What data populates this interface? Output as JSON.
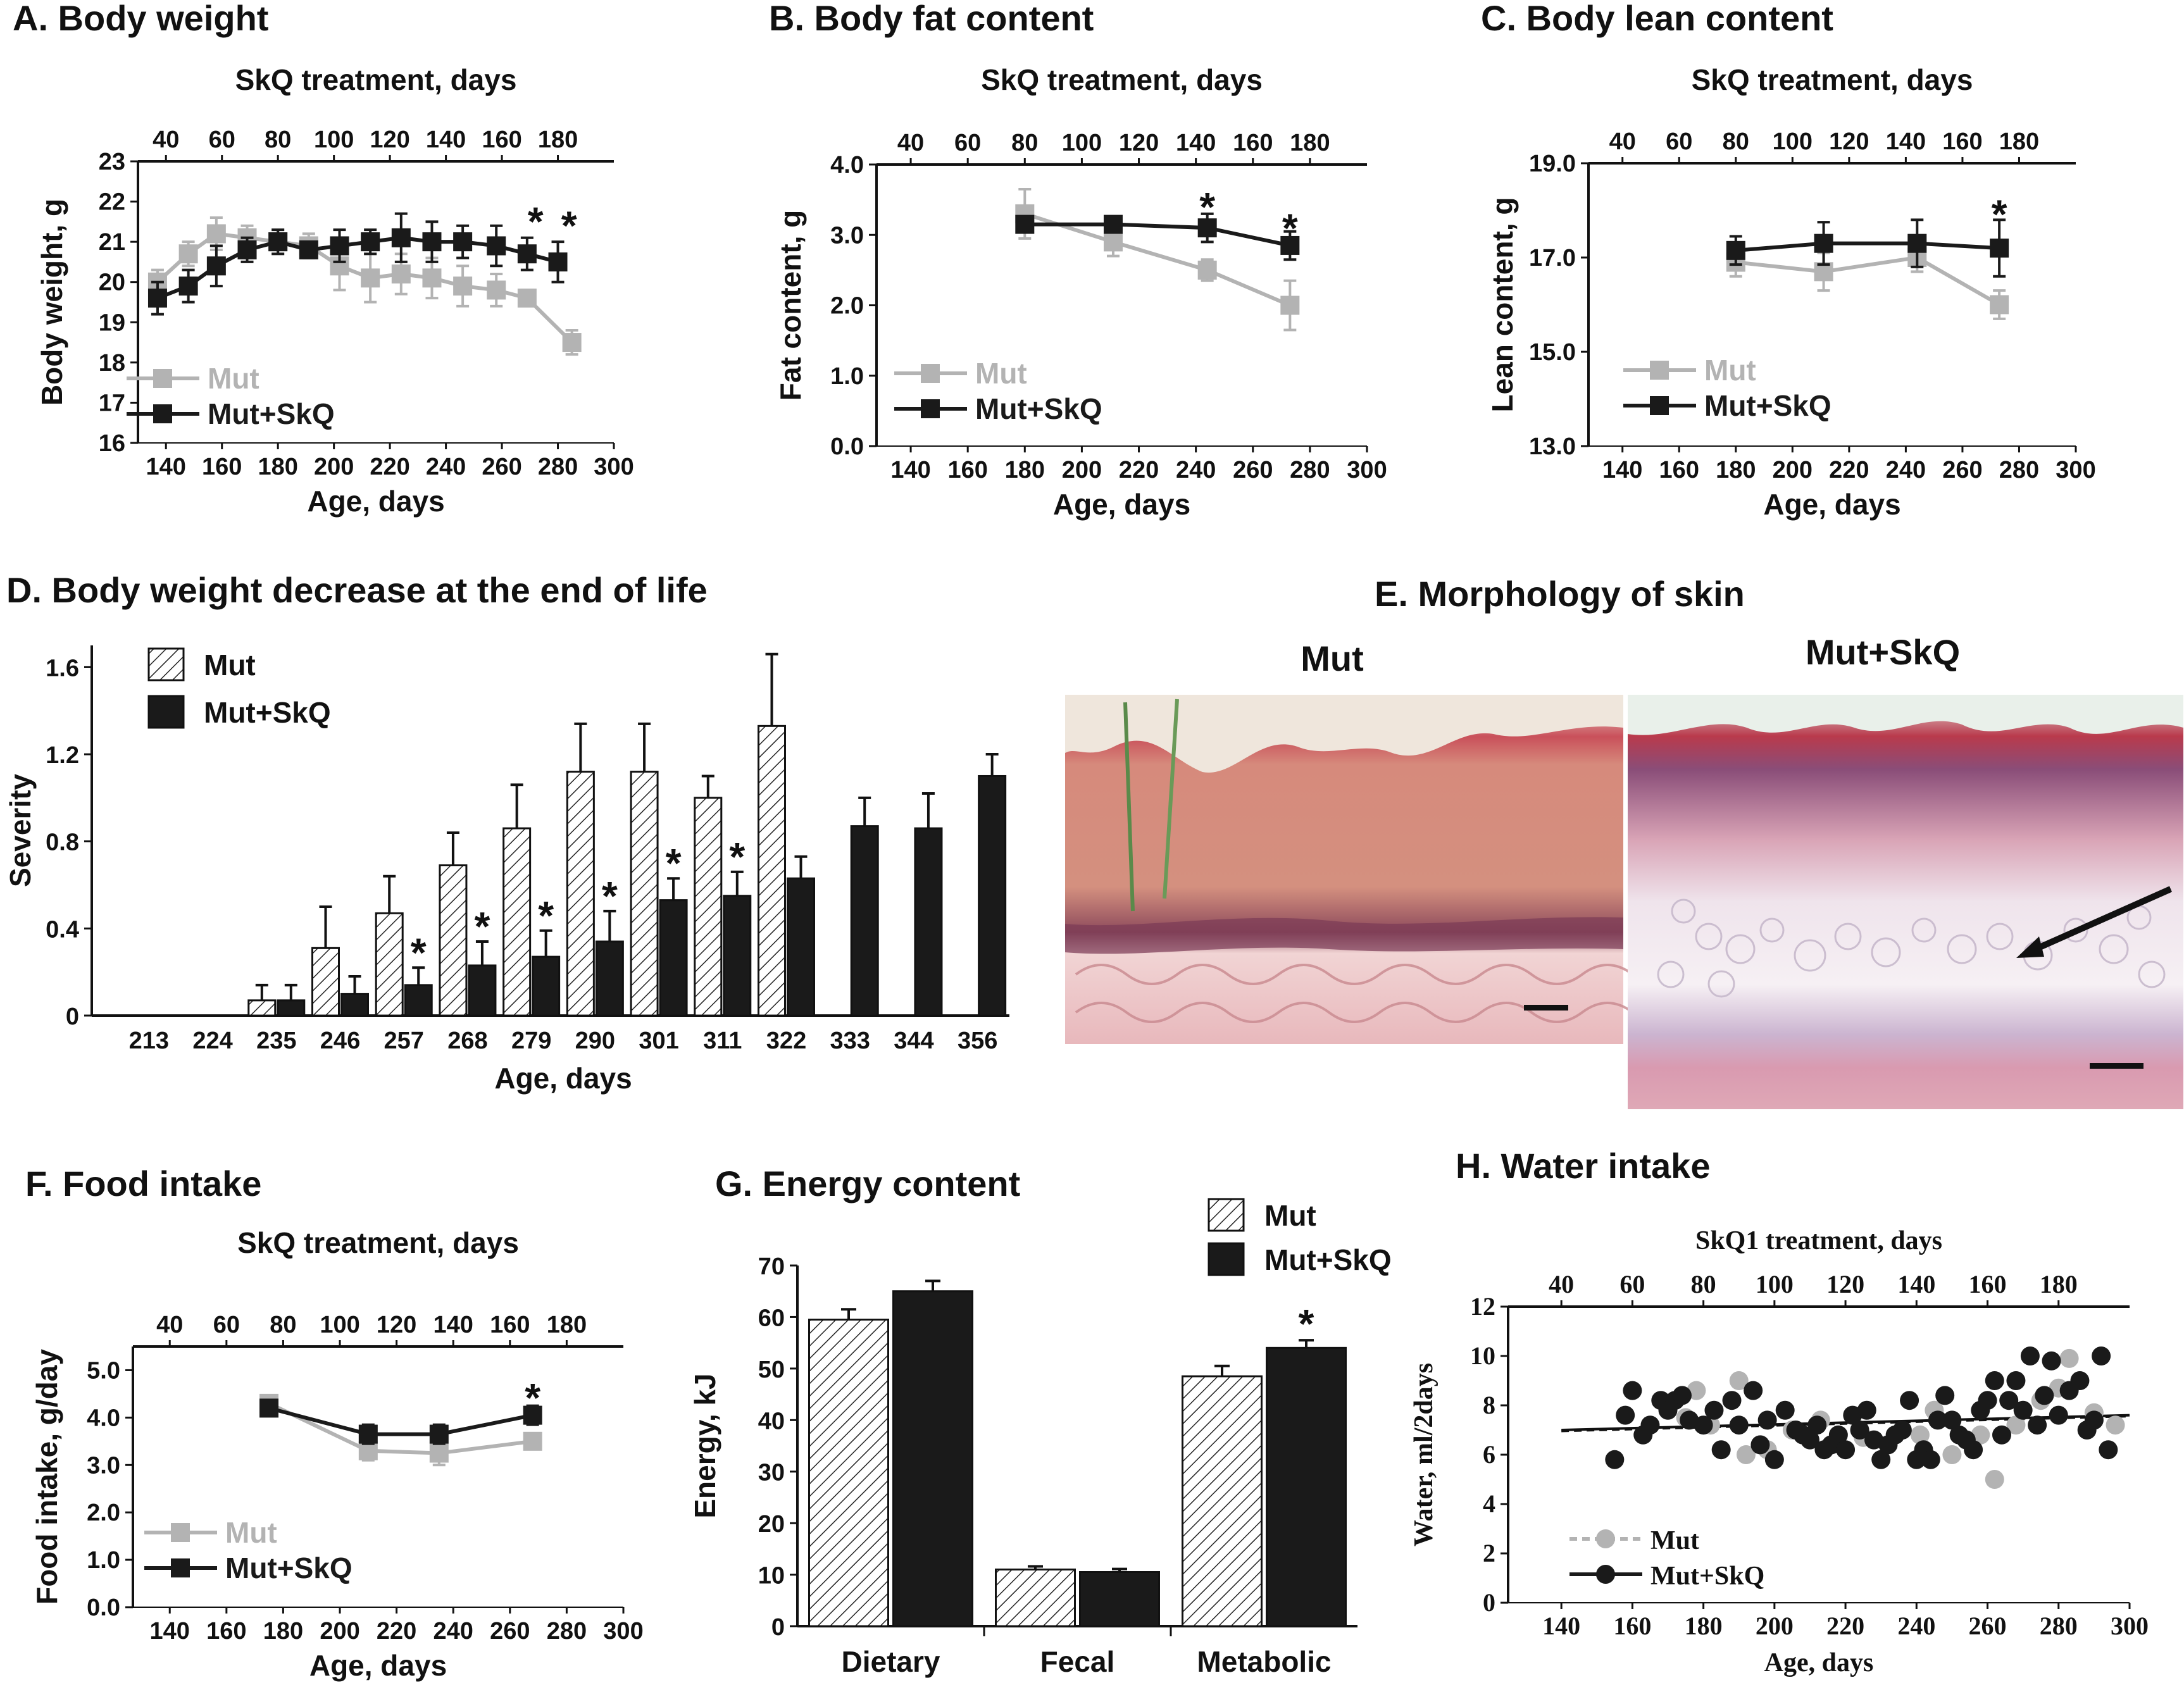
{
  "figure": {
    "panel_e_title": "E. Morphology of skin",
    "panel_e_mut_label": "Mut",
    "panel_e_skq_label": "Mut+SkQ"
  },
  "colors": {
    "mut": "#b3b3b3",
    "skq": "#1a1a1a"
  },
  "chart_data": [
    {
      "id": "A",
      "type": "line",
      "title": "A.  Body weight",
      "xlabel": "Age, days",
      "ylabel": "Body weight, g",
      "top_xlabel": "SkQ treatment, days",
      "xlim": [
        130,
        300
      ],
      "ylim": [
        16,
        23
      ],
      "xticks": [
        140,
        160,
        180,
        200,
        220,
        240,
        260,
        280,
        300
      ],
      "yticks": [
        16,
        17,
        18,
        19,
        20,
        21,
        22,
        23
      ],
      "top_xticks": [
        40,
        60,
        80,
        100,
        120,
        140,
        160,
        180
      ],
      "top_offset": 100,
      "legend": [
        "Mut",
        "Mut+SkQ"
      ],
      "series": [
        {
          "name": "Mut",
          "x": [
            137,
            148,
            158,
            169,
            180,
            191,
            202,
            213,
            224,
            235,
            246,
            258,
            269,
            285
          ],
          "y": [
            20.0,
            20.7,
            21.2,
            21.1,
            21.0,
            20.9,
            20.4,
            20.1,
            20.2,
            20.1,
            19.9,
            19.8,
            19.6,
            18.5
          ],
          "err": [
            0.3,
            0.3,
            0.4,
            0.3,
            0.3,
            0.3,
            0.6,
            0.6,
            0.5,
            0.5,
            0.5,
            0.4,
            0.2,
            0.3
          ]
        },
        {
          "name": "Mut+SkQ",
          "x": [
            137,
            148,
            158,
            169,
            180,
            191,
            202,
            213,
            224,
            235,
            246,
            258,
            269,
            280
          ],
          "y": [
            19.6,
            19.9,
            20.4,
            20.8,
            21.0,
            20.8,
            20.9,
            21.0,
            21.1,
            21.0,
            21.0,
            20.9,
            20.7,
            20.5
          ],
          "err": [
            0.4,
            0.4,
            0.5,
            0.3,
            0.3,
            0.2,
            0.4,
            0.3,
            0.6,
            0.5,
            0.4,
            0.5,
            0.4,
            0.5
          ]
        }
      ],
      "stars": [
        {
          "x": 272,
          "y": 21.6
        },
        {
          "x": 284,
          "y": 21.5
        }
      ]
    },
    {
      "id": "B",
      "type": "line",
      "title": "B.  Body fat content",
      "xlabel": "Age, days",
      "ylabel": "Fat content, g",
      "top_xlabel": "SkQ treatment, days",
      "xlim": [
        128,
        300
      ],
      "ylim": [
        0,
        4
      ],
      "xticks": [
        140,
        160,
        180,
        200,
        220,
        240,
        260,
        280,
        300
      ],
      "yticks": [
        0.0,
        1.0,
        2.0,
        3.0,
        4.0
      ],
      "ytick_labels": [
        "0.0",
        "1.0",
        "2.0",
        "3.0",
        "4.0"
      ],
      "top_xticks": [
        40,
        60,
        80,
        100,
        120,
        140,
        160,
        180
      ],
      "top_offset": 100,
      "legend": [
        "Mut",
        "Mut+SkQ"
      ],
      "series": [
        {
          "name": "Mut",
          "x": [
            180,
            211,
            244,
            273
          ],
          "y": [
            3.3,
            2.9,
            2.5,
            2.0
          ],
          "err": [
            0.35,
            0.2,
            0.15,
            0.35
          ]
        },
        {
          "name": "Mut+SkQ",
          "x": [
            180,
            211,
            244,
            273
          ],
          "y": [
            3.15,
            3.15,
            3.1,
            2.85
          ],
          "err": [
            0.1,
            0.1,
            0.2,
            0.2
          ]
        }
      ],
      "stars": [
        {
          "x": 244,
          "y": 3.45
        },
        {
          "x": 273,
          "y": 3.15
        }
      ]
    },
    {
      "id": "C",
      "type": "line",
      "title": "C.  Body lean content",
      "xlabel": "Age, days",
      "ylabel": "Lean content, g",
      "top_xlabel": "SkQ treatment, days",
      "xlim": [
        128,
        300
      ],
      "ylim": [
        13,
        19
      ],
      "xticks": [
        140,
        160,
        180,
        200,
        220,
        240,
        260,
        280,
        300
      ],
      "yticks": [
        13,
        15,
        17,
        19
      ],
      "ytick_labels": [
        "13.0",
        "15.0",
        "17.0",
        "19.0"
      ],
      "top_xticks": [
        40,
        60,
        80,
        100,
        120,
        140,
        160,
        180
      ],
      "top_offset": 100,
      "legend": [
        "Mut",
        "Mut+SkQ"
      ],
      "series": [
        {
          "name": "Mut",
          "x": [
            180,
            211,
            244,
            273
          ],
          "y": [
            16.9,
            16.7,
            17.0,
            16.0
          ],
          "err": [
            0.3,
            0.4,
            0.3,
            0.3
          ]
        },
        {
          "name": "Mut+SkQ",
          "x": [
            180,
            211,
            244,
            273
          ],
          "y": [
            17.15,
            17.3,
            17.3,
            17.2
          ],
          "err": [
            0.3,
            0.45,
            0.5,
            0.6
          ]
        }
      ],
      "stars": [
        {
          "x": 273,
          "y": 18.0
        }
      ]
    },
    {
      "id": "D",
      "type": "bar",
      "title": "D.  Body weight decrease at the end of life",
      "xlabel": "Age, days",
      "ylabel": "Severity",
      "categories": [
        "213",
        "224",
        "235",
        "246",
        "257",
        "268",
        "279",
        "290",
        "301",
        "311",
        "322",
        "333",
        "344",
        "356"
      ],
      "ylim": [
        0,
        1.7
      ],
      "yticks": [
        0,
        0.4,
        0.8,
        1.2,
        1.6
      ],
      "ytick_labels": [
        "0",
        "0.4",
        "0.8",
        "1.2",
        "1.6"
      ],
      "legend": [
        "Mut",
        "Mut+SkQ"
      ],
      "series": [
        {
          "name": "Mut",
          "values": [
            0,
            0,
            0.07,
            0.31,
            0.47,
            0.69,
            0.86,
            1.12,
            1.12,
            1.0,
            1.33,
            0,
            0,
            0
          ],
          "err": [
            0,
            0,
            0.07,
            0.19,
            0.17,
            0.15,
            0.2,
            0.22,
            0.22,
            0.1,
            0.33,
            0,
            0,
            0
          ]
        },
        {
          "name": "Mut+SkQ",
          "values": [
            0,
            0,
            0.07,
            0.1,
            0.14,
            0.23,
            0.27,
            0.34,
            0.53,
            0.55,
            0.63,
            0.87,
            0.86,
            1.1
          ],
          "err": [
            0,
            0,
            0.07,
            0.08,
            0.08,
            0.11,
            0.12,
            0.14,
            0.1,
            0.11,
            0.1,
            0.13,
            0.16,
            0.1
          ]
        }
      ],
      "stars": [
        "257",
        "268",
        "279",
        "290",
        "301",
        "311"
      ]
    },
    {
      "id": "F",
      "type": "line",
      "title": "F.  Food intake",
      "xlabel": "Age, days",
      "ylabel": "Food intake, g/day",
      "top_xlabel": "SkQ treatment, days",
      "xlim": [
        127,
        300
      ],
      "ylim": [
        0,
        5.5
      ],
      "xticks": [
        140,
        160,
        180,
        200,
        220,
        240,
        260,
        280,
        300
      ],
      "yticks": [
        0,
        1,
        2,
        3,
        4,
        5
      ],
      "ytick_labels": [
        "0.0",
        "1.0",
        "2.0",
        "3.0",
        "4.0",
        "5.0"
      ],
      "top_xticks": [
        40,
        60,
        80,
        100,
        120,
        140,
        160,
        180
      ],
      "top_offset": 100,
      "legend": [
        "Mut",
        "Mut+SkQ"
      ],
      "series": [
        {
          "name": "Mut",
          "x": [
            175,
            210,
            235,
            268
          ],
          "y": [
            4.3,
            3.3,
            3.25,
            3.5
          ],
          "err": [
            0.1,
            0.2,
            0.25,
            0.15
          ]
        },
        {
          "name": "Mut+SkQ",
          "x": [
            175,
            210,
            235,
            268
          ],
          "y": [
            4.2,
            3.65,
            3.65,
            4.05
          ],
          "err": [
            0.1,
            0.2,
            0.2,
            0.2
          ]
        }
      ],
      "stars": [
        {
          "x": 268,
          "y": 4.5
        }
      ]
    },
    {
      "id": "G",
      "type": "bar",
      "title": "G.  Energy content",
      "xlabel": "",
      "ylabel": "Energy, kJ",
      "categories": [
        "Dietary",
        "Fecal",
        "Metabolic"
      ],
      "ylim": [
        0,
        70
      ],
      "yticks": [
        0,
        10,
        20,
        30,
        40,
        50,
        60,
        70
      ],
      "legend": [
        "Mut",
        "Mut+SkQ"
      ],
      "series": [
        {
          "name": "Mut",
          "values": [
            59.5,
            11,
            48.5
          ],
          "err": [
            2,
            0.6,
            2
          ]
        },
        {
          "name": "Mut+SkQ",
          "values": [
            65,
            10.5,
            54
          ],
          "err": [
            2,
            0.6,
            1.5
          ]
        }
      ],
      "stars": [
        "Metabolic"
      ]
    },
    {
      "id": "H",
      "type": "scatter",
      "title": "H.  Water intake",
      "xlabel": "Age, days",
      "ylabel": "Water, ml/2days",
      "top_xlabel": "SkQ1 treatment, days",
      "xlim": [
        125,
        300
      ],
      "ylim": [
        0,
        12
      ],
      "xticks": [
        140,
        160,
        180,
        200,
        220,
        240,
        260,
        280,
        300
      ],
      "yticks": [
        0,
        2,
        4,
        6,
        8,
        10,
        12
      ],
      "top_xticks": [
        40,
        60,
        80,
        100,
        120,
        140,
        160,
        180
      ],
      "top_offset": 100,
      "legend": [
        "Mut",
        "Mut+SkQ"
      ],
      "trend": {
        "x": [
          140,
          300
        ],
        "y": [
          7.0,
          7.6
        ]
      },
      "series": [
        {
          "name": "Mut",
          "x": [
            175,
            178,
            182,
            190,
            192,
            198,
            205,
            213,
            225,
            232,
            241,
            245,
            250,
            258,
            262,
            268,
            275,
            280,
            283,
            290,
            296
          ],
          "y": [
            7.5,
            8.6,
            7.2,
            9.0,
            6.0,
            6.2,
            7.0,
            7.4,
            6.7,
            6.4,
            6.8,
            7.8,
            6.0,
            6.8,
            5.0,
            7.2,
            8.2,
            8.7,
            9.9,
            7.7,
            7.2
          ]
        },
        {
          "name": "Mut+SkQ",
          "x": [
            155,
            158,
            160,
            163,
            165,
            168,
            170,
            172,
            174,
            176,
            180,
            183,
            185,
            188,
            190,
            194,
            196,
            198,
            200,
            203,
            206,
            208,
            210,
            212,
            214,
            216,
            218,
            220,
            222,
            224,
            226,
            228,
            230,
            232,
            234,
            236,
            238,
            240,
            242,
            244,
            246,
            248,
            250,
            252,
            254,
            256,
            258,
            260,
            262,
            264,
            266,
            268,
            270,
            272,
            274,
            276,
            278,
            280,
            283,
            286,
            288,
            290,
            292,
            294
          ],
          "y": [
            5.8,
            7.6,
            8.6,
            6.8,
            7.2,
            8.2,
            7.8,
            8.2,
            8.4,
            7.4,
            7.2,
            7.8,
            6.2,
            8.2,
            7.2,
            8.6,
            6.4,
            7.4,
            5.8,
            7.8,
            7.0,
            6.8,
            6.6,
            7.2,
            6.2,
            6.4,
            6.8,
            6.2,
            7.6,
            7.0,
            7.8,
            6.6,
            5.8,
            6.4,
            6.8,
            7.0,
            8.2,
            5.8,
            6.2,
            5.8,
            7.4,
            8.4,
            7.4,
            6.8,
            6.6,
            6.2,
            7.8,
            8.2,
            9.0,
            6.8,
            8.2,
            9.0,
            7.8,
            10.0,
            7.2,
            8.4,
            9.8,
            7.6,
            8.6,
            9.0,
            7.0,
            7.4,
            10.0,
            6.2
          ]
        }
      ]
    }
  ]
}
